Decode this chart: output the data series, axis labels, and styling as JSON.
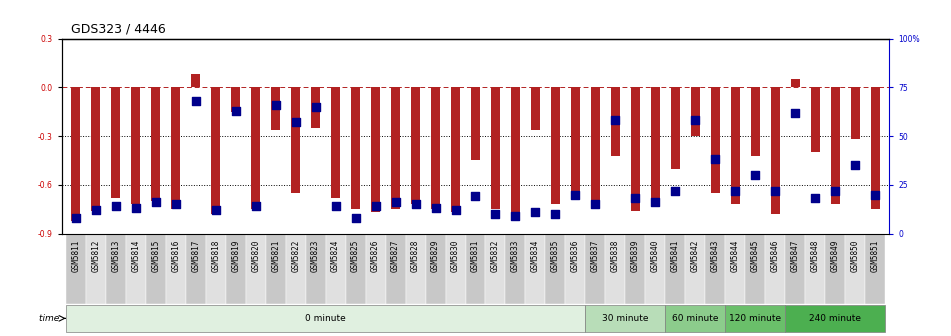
{
  "title": "GDS323 / 4446",
  "samples": [
    "GSM5811",
    "GSM5812",
    "GSM5813",
    "GSM5814",
    "GSM5815",
    "GSM5816",
    "GSM5817",
    "GSM5818",
    "GSM5819",
    "GSM5820",
    "GSM5821",
    "GSM5822",
    "GSM5823",
    "GSM5824",
    "GSM5825",
    "GSM5826",
    "GSM5827",
    "GSM5828",
    "GSM5829",
    "GSM5830",
    "GSM5831",
    "GSM5832",
    "GSM5833",
    "GSM5834",
    "GSM5835",
    "GSM5836",
    "GSM5837",
    "GSM5838",
    "GSM5839",
    "GSM5840",
    "GSM5841",
    "GSM5842",
    "GSM5843",
    "GSM5844",
    "GSM5845",
    "GSM5846",
    "GSM5847",
    "GSM5848",
    "GSM5849",
    "GSM5850",
    "GSM5851"
  ],
  "log_ratio": [
    -0.82,
    -0.76,
    -0.68,
    -0.72,
    -0.7,
    -0.75,
    0.08,
    -0.78,
    -0.15,
    -0.75,
    -0.26,
    -0.65,
    -0.25,
    -0.68,
    -0.75,
    -0.77,
    -0.75,
    -0.72,
    -0.75,
    -0.77,
    -0.45,
    -0.75,
    -0.78,
    -0.26,
    -0.72,
    -0.65,
    -0.73,
    -0.42,
    -0.76,
    -0.72,
    -0.5,
    -0.3,
    -0.65,
    -0.72,
    -0.42,
    -0.78,
    0.05,
    -0.4,
    -0.72,
    -0.32,
    -0.75
  ],
  "percentile_rank": [
    8,
    12,
    14,
    13,
    16,
    15,
    68,
    12,
    63,
    14,
    66,
    57,
    65,
    14,
    8,
    14,
    16,
    15,
    13,
    12,
    19,
    10,
    9,
    11,
    10,
    20,
    15,
    58,
    18,
    16,
    22,
    58,
    38,
    22,
    30,
    22,
    62,
    18,
    22,
    35,
    20
  ],
  "bar_color": "#b22222",
  "dot_color": "#00008b",
  "ylim_left": [
    -0.9,
    0.3
  ],
  "ylim_right": [
    0,
    100
  ],
  "yticks_left": [
    0.3,
    0.0,
    -0.3,
    -0.6,
    -0.9
  ],
  "yticks_right": [
    100,
    75,
    50,
    25,
    0
  ],
  "ytick_labels_right": [
    "100%",
    "75",
    "50",
    "25",
    "0"
  ],
  "hlines": [
    -0.3,
    -0.6
  ],
  "time_groups": [
    {
      "label": "0 minute",
      "start": 0,
      "end": 26,
      "color": "#e0f0e0"
    },
    {
      "label": "30 minute",
      "start": 26,
      "end": 30,
      "color": "#b8ddb8"
    },
    {
      "label": "60 minute",
      "start": 30,
      "end": 33,
      "color": "#8ccc8c"
    },
    {
      "label": "120 minute",
      "start": 33,
      "end": 36,
      "color": "#6abf6a"
    },
    {
      "label": "240 minute",
      "start": 36,
      "end": 41,
      "color": "#4caf50"
    }
  ],
  "bar_width": 0.45,
  "dot_size": 30,
  "bg_color": "#ffffff",
  "title_fontsize": 9,
  "tick_fontsize": 5.5,
  "right_label_color": "#0000cc",
  "left_label_color": "#cc0000"
}
